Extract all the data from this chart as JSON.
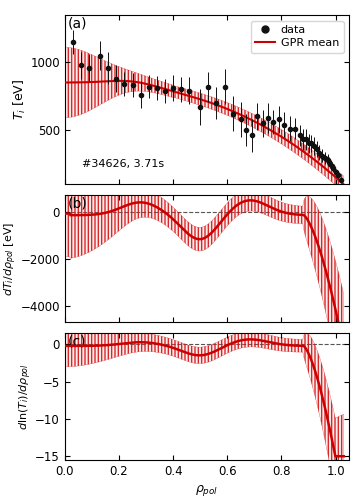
{
  "title_a": "(a)",
  "title_b": "(b)",
  "title_c": "(c)",
  "annotation": "#34626, 3.71s",
  "xlabel": "\\rho_pol",
  "ylabel_a": "T_i [eV]",
  "ylabel_b": "dT_i/d\\rho_pol [eV]",
  "ylabel_c": "dln(T_i)/d\\rho_pol",
  "legend_data": "data",
  "legend_gpr": "GPR mean",
  "xlim": [
    0,
    1.05
  ],
  "ylim_a": [
    100,
    1350
  ],
  "ylim_b": [
    -4700,
    700
  ],
  "ylim_c": [
    -15.5,
    1.5
  ],
  "yticks_a": [
    500,
    1000
  ],
  "yticks_b": [
    0,
    -2000,
    -4000
  ],
  "yticks_c": [
    0,
    -5,
    -10,
    -15
  ],
  "xticks": [
    0,
    0.2,
    0.4,
    0.6,
    0.8,
    1.0
  ],
  "line_color": "#cc0000",
  "fill_color": "#ff8888",
  "data_color": "#111111",
  "background_color": "#ffffff"
}
